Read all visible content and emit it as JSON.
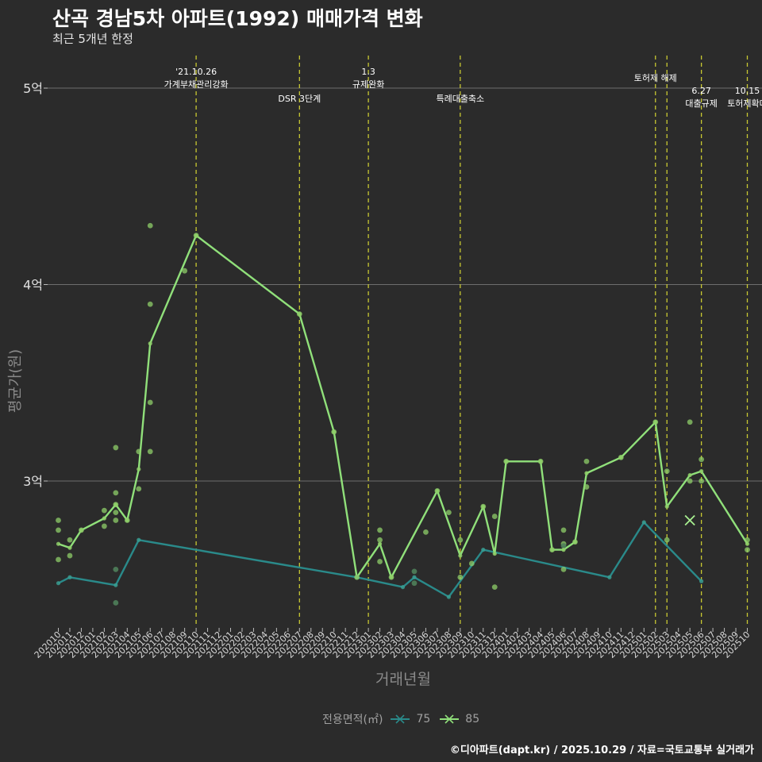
{
  "header": {
    "title": "산곡 경남5차 아파트(1992) 매매가격 변화",
    "subtitle": "최근 5개년 한정"
  },
  "footer": {
    "credit": "©디아파트(dapt.kr) / 2025.10.29 / 자료=국토교통부 실거래가"
  },
  "colors": {
    "background": "#2b2b2b",
    "series_75": "#2a8a8a",
    "series_85": "#90e07a",
    "dots_85": "#8fcf6a",
    "event_line": "#c8c832",
    "grid": "#6e6e6e"
  },
  "chart_data": {
    "type": "line",
    "title": "산곡 경남5차 아파트(1992) 매매가격 변화",
    "subtitle": "최근 5개년 한정",
    "xlabel": "거래년월",
    "ylabel": "평균가(원)",
    "ylim": [
      2.25,
      5.3
    ],
    "yticks": [
      {
        "value": 3,
        "label": "3억"
      },
      {
        "value": 4,
        "label": "4억"
      },
      {
        "value": 5,
        "label": "5억"
      }
    ],
    "months": [
      "202010",
      "202011",
      "202012",
      "202101",
      "202102",
      "202103",
      "202104",
      "202105",
      "202106",
      "202107",
      "202108",
      "202109",
      "202110",
      "202111",
      "202112",
      "202201",
      "202202",
      "202203",
      "202204",
      "202205",
      "202206",
      "202207",
      "202208",
      "202209",
      "202210",
      "202211",
      "202212",
      "202301",
      "202302",
      "202303",
      "202304",
      "202305",
      "202306",
      "202307",
      "202308",
      "202309",
      "202310",
      "202311",
      "202312",
      "202401",
      "202402",
      "202403",
      "202404",
      "202405",
      "202406",
      "202407",
      "202408",
      "202409",
      "202410",
      "202411",
      "202412",
      "202501",
      "202502",
      "202503",
      "202504",
      "202505",
      "202506",
      "202507",
      "202508",
      "202509",
      "202510"
    ],
    "legend": {
      "title": "전용면적(㎡)",
      "entries": [
        "75",
        "85"
      ]
    },
    "series": [
      {
        "name": "75",
        "color": "#2a8a8a",
        "points": [
          [
            "202010",
            2.48
          ],
          [
            "202011",
            2.51
          ],
          [
            "202103",
            2.47
          ],
          [
            "202105",
            2.7
          ],
          [
            "202212",
            2.51
          ],
          [
            "202304",
            2.46
          ],
          [
            "202305",
            2.51
          ],
          [
            "202308",
            2.41
          ],
          [
            "202311",
            2.65
          ],
          [
            "202410",
            2.51
          ],
          [
            "202501",
            2.79
          ],
          [
            "202506",
            2.49
          ]
        ]
      },
      {
        "name": "85",
        "color": "#90e07a",
        "points": [
          [
            "202010",
            2.68
          ],
          [
            "202011",
            2.66
          ],
          [
            "202012",
            2.75
          ],
          [
            "202102",
            2.81
          ],
          [
            "202103",
            2.88
          ],
          [
            "202104",
            2.8
          ],
          [
            "202105",
            3.06
          ],
          [
            "202106",
            3.7
          ],
          [
            "202110",
            4.25
          ],
          [
            "202207",
            3.85
          ],
          [
            "202210",
            3.25
          ],
          [
            "202212",
            2.51
          ],
          [
            "202302",
            2.68
          ],
          [
            "202303",
            2.51
          ],
          [
            "202307",
            2.95
          ],
          [
            "202309",
            2.62
          ],
          [
            "202311",
            2.87
          ],
          [
            "202312",
            2.63
          ],
          [
            "202401",
            3.1
          ],
          [
            "202404",
            3.1
          ],
          [
            "202405",
            2.65
          ],
          [
            "202406",
            2.65
          ],
          [
            "202407",
            2.69
          ],
          [
            "202408",
            3.04
          ],
          [
            "202411",
            3.12
          ],
          [
            "202502",
            3.3
          ],
          [
            "202503",
            2.87
          ],
          [
            "202505",
            3.03
          ],
          [
            "202506",
            3.05
          ],
          [
            "202510",
            2.68
          ]
        ]
      }
    ],
    "transactions_85": [
      [
        "202010",
        2.8
      ],
      [
        "202010",
        2.75
      ],
      [
        "202010",
        2.6
      ],
      [
        "202011",
        2.7
      ],
      [
        "202011",
        2.62
      ],
      [
        "202012",
        2.75
      ],
      [
        "202102",
        2.85
      ],
      [
        "202102",
        2.77
      ],
      [
        "202103",
        3.17
      ],
      [
        "202103",
        2.94
      ],
      [
        "202103",
        2.88
      ],
      [
        "202103",
        2.84
      ],
      [
        "202103",
        2.8
      ],
      [
        "202104",
        2.8
      ],
      [
        "202105",
        3.15
      ],
      [
        "202105",
        2.96
      ],
      [
        "202106",
        4.3
      ],
      [
        "202106",
        3.9
      ],
      [
        "202106",
        3.4
      ],
      [
        "202106",
        3.15
      ],
      [
        "202109",
        4.07
      ],
      [
        "202110",
        4.25
      ],
      [
        "202207",
        3.85
      ],
      [
        "202210",
        3.25
      ],
      [
        "202212",
        2.51
      ],
      [
        "202302",
        2.75
      ],
      [
        "202302",
        2.7
      ],
      [
        "202302",
        2.59
      ],
      [
        "202303",
        2.51
      ],
      [
        "202306",
        2.74
      ],
      [
        "202307",
        2.95
      ],
      [
        "202308",
        2.84
      ],
      [
        "202309",
        2.7
      ],
      [
        "202309",
        2.51
      ],
      [
        "202310",
        2.58
      ],
      [
        "202311",
        2.87
      ],
      [
        "202312",
        2.82
      ],
      [
        "202312",
        2.46
      ],
      [
        "202401",
        3.1
      ],
      [
        "202404",
        3.1
      ],
      [
        "202405",
        2.65
      ],
      [
        "202406",
        2.75
      ],
      [
        "202406",
        2.68
      ],
      [
        "202406",
        2.55
      ],
      [
        "202407",
        2.69
      ],
      [
        "202408",
        3.1
      ],
      [
        "202408",
        2.97
      ],
      [
        "202411",
        3.12
      ],
      [
        "202502",
        3.3
      ],
      [
        "202503",
        3.05
      ],
      [
        "202503",
        2.7
      ],
      [
        "202505",
        3.3
      ],
      [
        "202505",
        3.0
      ],
      [
        "202506",
        3.11
      ],
      [
        "202506",
        3.0
      ],
      [
        "202510",
        2.7
      ],
      [
        "202510",
        2.65
      ]
    ],
    "transactions_75": [
      [
        "202103",
        2.55
      ],
      [
        "202103",
        2.38
      ],
      [
        "202305",
        2.54
      ],
      [
        "202305",
        2.48
      ],
      [
        "202406",
        2.67
      ]
    ],
    "special_markers": [
      {
        "series": "85",
        "x": "202505",
        "y": 2.8
      }
    ],
    "events": [
      {
        "x": "202110",
        "lines": [
          "'21.10.26",
          "가계부채관리강화"
        ],
        "row": 0
      },
      {
        "x": "202207",
        "lines": [
          "DSR 3단계"
        ],
        "row": 1
      },
      {
        "x": "202301",
        "lines": [
          "1.3",
          "규제완화"
        ],
        "row": 0
      },
      {
        "x": "202309",
        "lines": [
          "특례대출축소"
        ],
        "row": 1
      },
      {
        "x": "202502",
        "lines": [
          "토허제 해제"
        ],
        "row": 0
      },
      {
        "x": "202503",
        "lines": [],
        "row": 0
      },
      {
        "x": "202506",
        "lines": [
          "6.27",
          "대출규제"
        ],
        "row": 1
      },
      {
        "x": "202510",
        "lines": [
          "10.15",
          "토허제확대"
        ],
        "row": 1
      }
    ]
  }
}
